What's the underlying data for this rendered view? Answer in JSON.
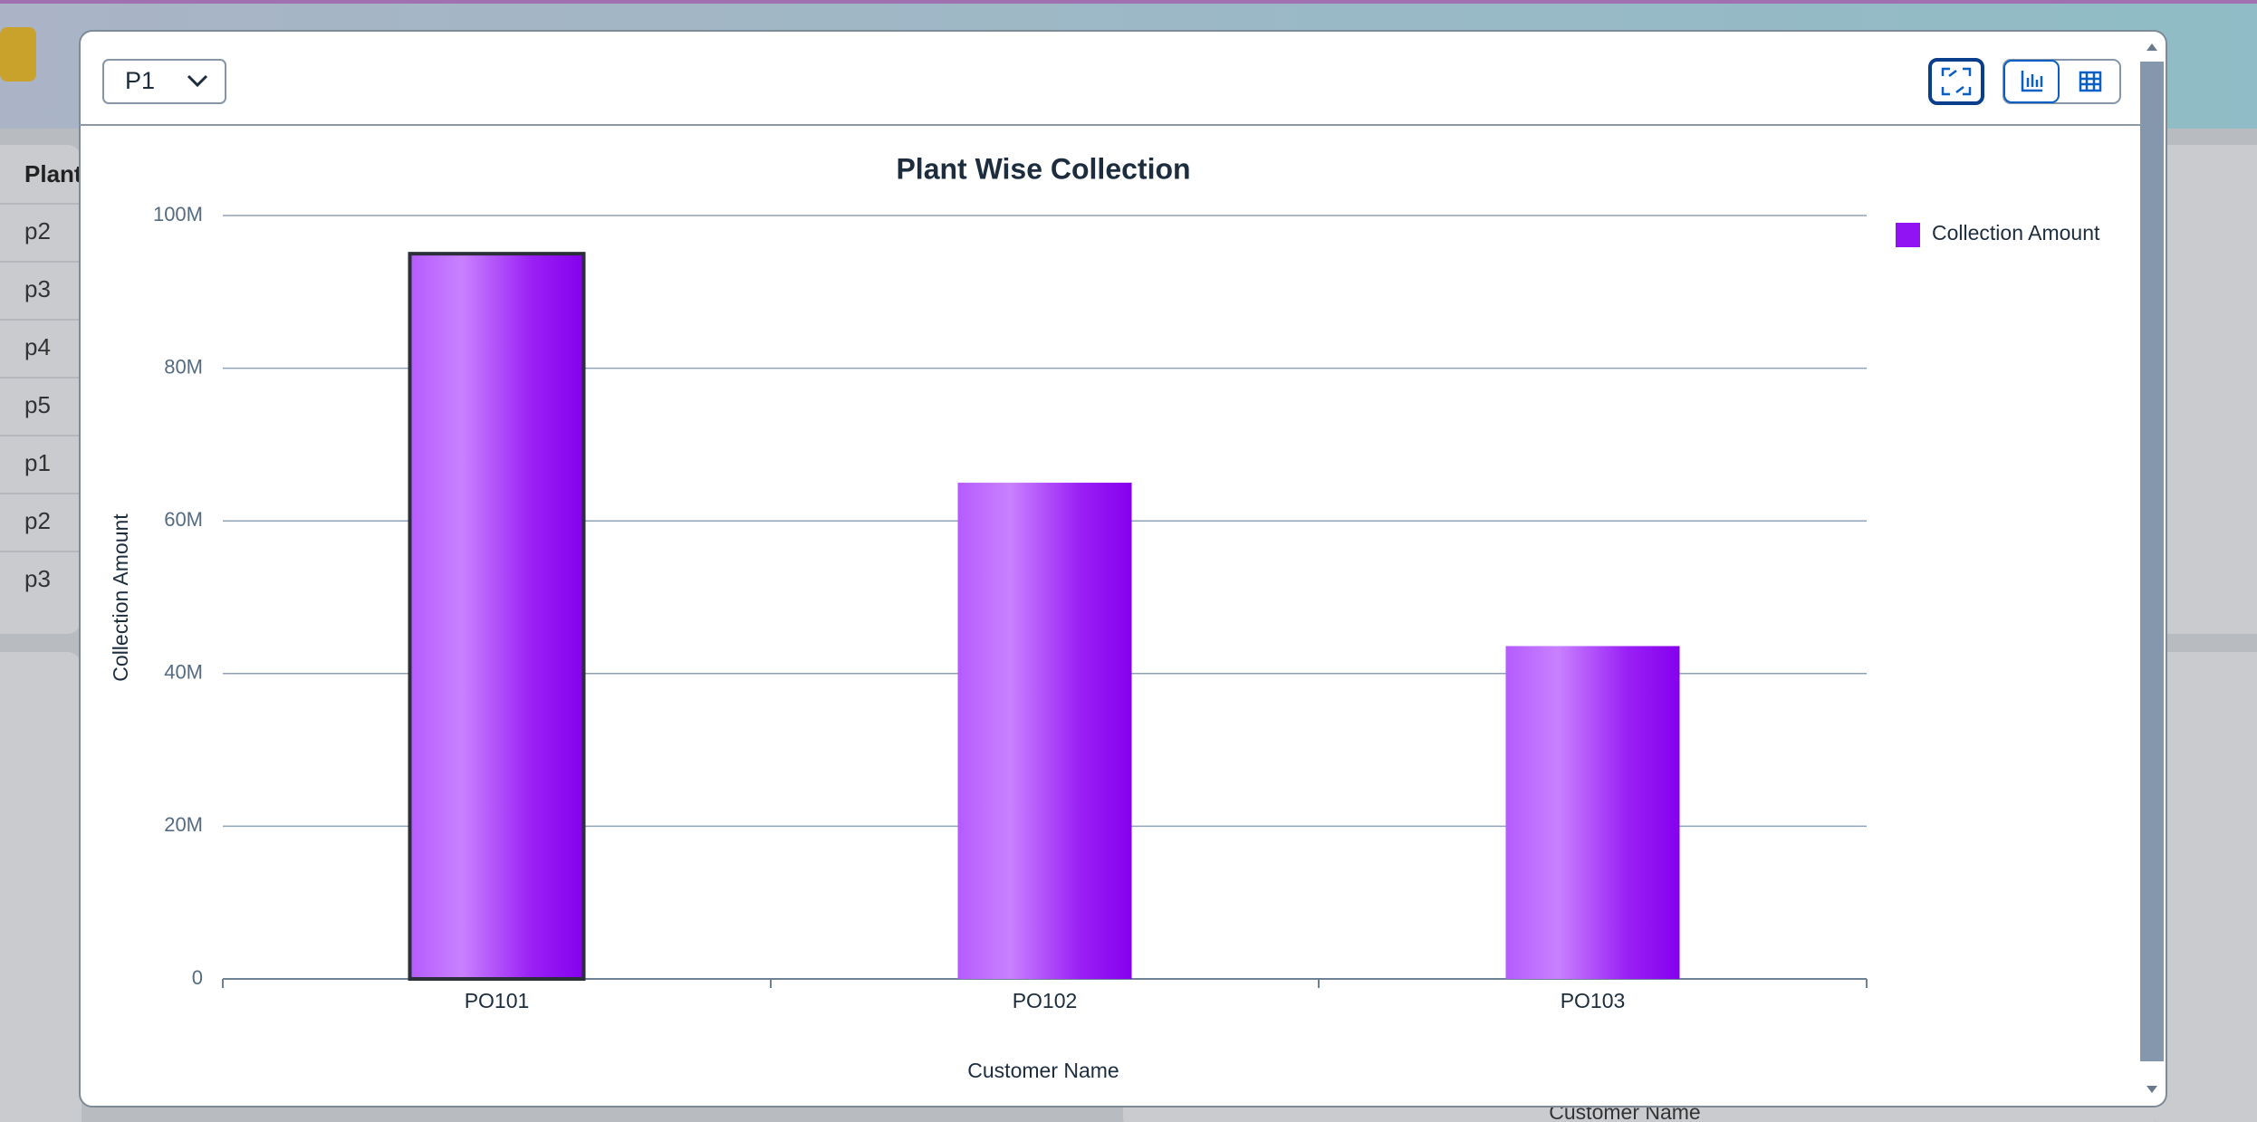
{
  "background": {
    "table_header": "Plant",
    "table_rows": [
      "p2",
      "p3",
      "p4",
      "p5",
      "p1",
      "p2",
      "p3"
    ],
    "x_axis_label": "Customer Name"
  },
  "dialog": {
    "dropdown": "P1"
  },
  "chart_data": {
    "type": "bar",
    "title": "Plant Wise Collection",
    "x_label": "Customer Name",
    "y_label": "Collection Amount",
    "categories": [
      "PO101",
      "PO102",
      "PO103"
    ],
    "series": [
      {
        "name": "Collection Amount",
        "color": "#9112f2",
        "values": [
          95000000,
          65000000,
          43600000
        ]
      }
    ],
    "ylim": [
      0,
      100000000
    ],
    "yticks": [
      0,
      {
        "value": 20000000,
        "label": "20M"
      },
      {
        "value": 40000000,
        "label": "40M"
      },
      {
        "value": 60000000,
        "label": "60M"
      },
      {
        "value": 80000000,
        "label": "80M"
      },
      {
        "value": 100000000,
        "label": "100M"
      }
    ],
    "grid": true,
    "legend": "top-right",
    "selected": 0
  }
}
